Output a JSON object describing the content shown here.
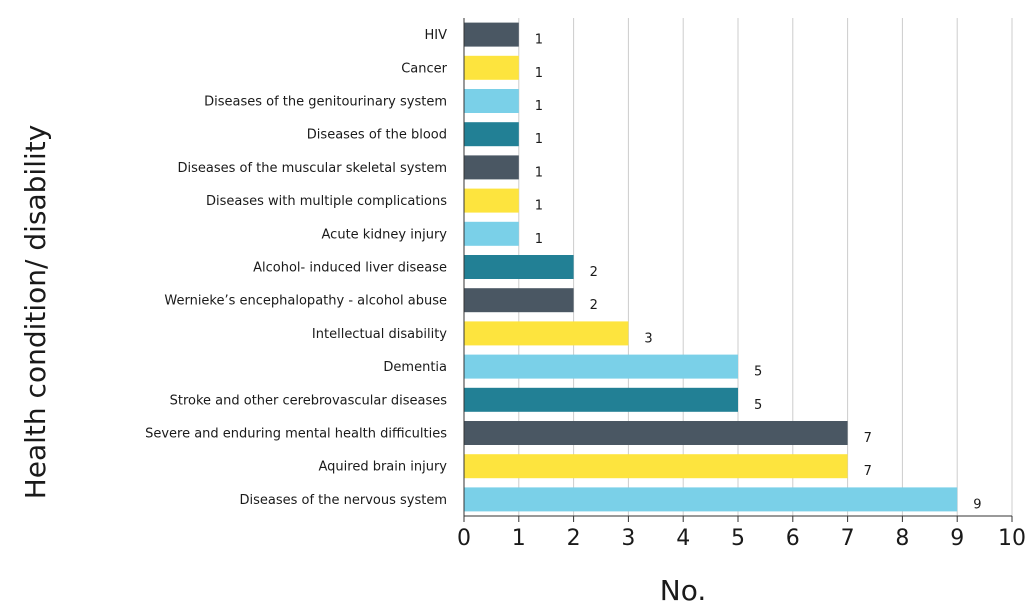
{
  "chart_data": {
    "type": "bar",
    "orientation": "horizontal",
    "categories": [
      "HIV",
      "Cancer",
      "Diseases of the genitourinary system",
      "Diseases of the blood",
      "Diseases of the muscular skeletal system",
      "Diseases with multiple complications",
      "Acute kidney injury",
      "Alcohol- induced liver disease",
      "Wernieke’s encephalopathy - alcohol abuse",
      "Intellectual disability",
      "Dementia",
      "Stroke and other cerebrovascular diseases",
      "Severe and enduring mental health difficulties",
      "Aquired brain injury",
      "Diseases of the nervous system"
    ],
    "values": [
      1,
      1,
      1,
      1,
      1,
      1,
      1,
      2,
      2,
      3,
      5,
      5,
      7,
      7,
      9
    ],
    "bar_colors": [
      "#4a5763",
      "#fde43e",
      "#7ad0e8",
      "#228095",
      "#4a5763",
      "#fde43e",
      "#7ad0e8",
      "#228095",
      "#4a5763",
      "#fde43e",
      "#7ad0e8",
      "#228095",
      "#4a5763",
      "#fde43e",
      "#7ad0e8"
    ],
    "xlabel": "No.",
    "ylabel": "Health condition/ disability",
    "xlim": [
      0,
      10
    ],
    "xticks": [
      "0",
      "1",
      "2",
      "3",
      "4",
      "5",
      "6",
      "7",
      "8",
      "9",
      "10"
    ],
    "grid": "vertical",
    "legend": "none"
  }
}
